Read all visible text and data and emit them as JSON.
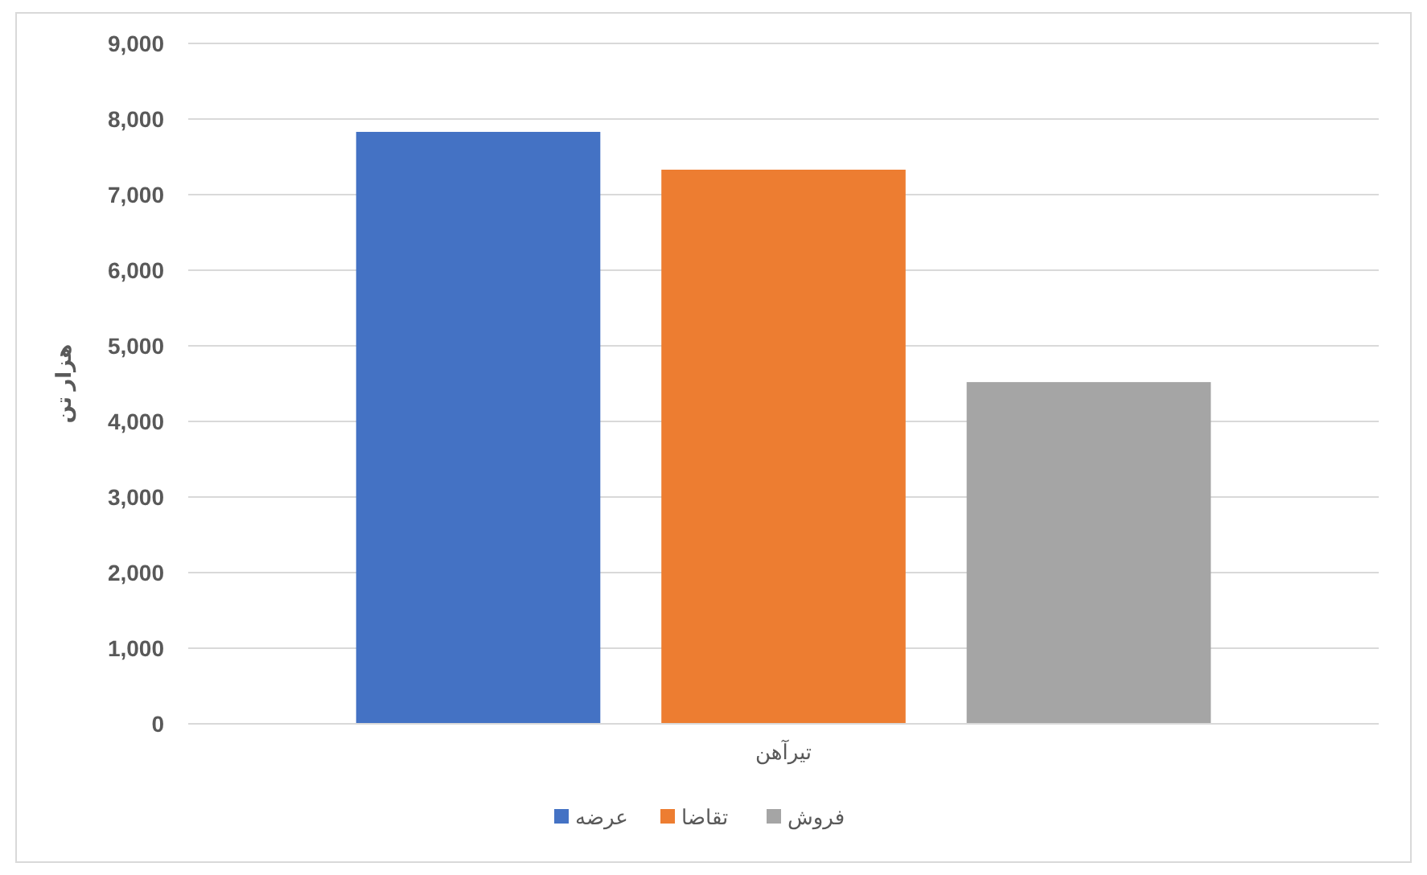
{
  "chart_data": {
    "type": "bar",
    "ylabel": "هزار تن",
    "categories": [
      "تیرآهن"
    ],
    "series": [
      {
        "name": "عرضه",
        "color": "#4472c4",
        "values": [
          7830
        ]
      },
      {
        "name": "تقاضا",
        "color": "#ed7d31",
        "values": [
          7330
        ]
      },
      {
        "name": "فروش",
        "color": "#a5a5a5",
        "values": [
          4520
        ]
      }
    ],
    "ylim": [
      0,
      9000
    ],
    "yticks": [
      {
        "value": 0,
        "label": "0"
      },
      {
        "value": 1000,
        "label": "1,000"
      },
      {
        "value": 2000,
        "label": "2,000"
      },
      {
        "value": 3000,
        "label": "3,000"
      },
      {
        "value": 4000,
        "label": "4,000"
      },
      {
        "value": 5000,
        "label": "5,000"
      },
      {
        "value": 6000,
        "label": "6,000"
      },
      {
        "value": 7000,
        "label": "7,000"
      },
      {
        "value": 8000,
        "label": "8,000"
      },
      {
        "value": 9000,
        "label": "9,000"
      }
    ],
    "grid": "y",
    "legend": "bottom"
  }
}
